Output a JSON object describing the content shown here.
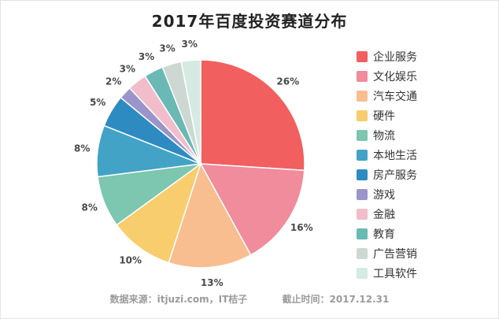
{
  "chart_data": {
    "type": "pie",
    "title": "2017年百度投资赛道分布",
    "categories": [
      "企业服务",
      "文化娱乐",
      "汽车交通",
      "硬件",
      "物流",
      "本地生活",
      "房产服务",
      "游戏",
      "金融",
      "教育",
      "广告营销",
      "工具软件"
    ],
    "values": [
      26,
      16,
      13,
      10,
      8,
      8,
      5,
      2,
      3,
      3,
      3,
      3
    ],
    "unit": "%",
    "colors": [
      "#f25f5f",
      "#f08c9c",
      "#f9be8f",
      "#f8cd6e",
      "#7dc6b0",
      "#43a3c6",
      "#2e8bc2",
      "#9b94ca",
      "#f1bdca",
      "#6ab9b4",
      "#cdd8d2",
      "#d4eae3"
    ],
    "legend_position": "right",
    "start_angle_deg": 0,
    "direction": "clockwise",
    "labels_outside": true
  },
  "footer": {
    "source": "数据来源：itjuzi.com，IT桔子",
    "deadline": "截止时间：2017.12.31"
  }
}
